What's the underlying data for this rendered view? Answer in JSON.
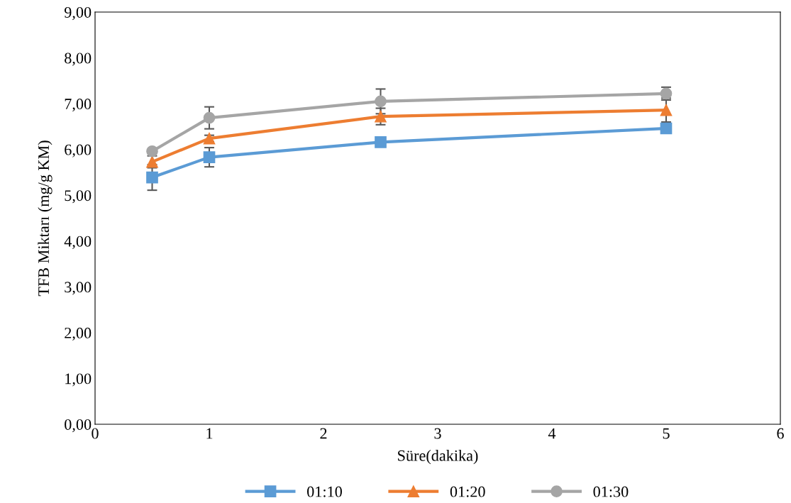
{
  "chart_data": {
    "type": "line",
    "xlabel": "Süre(dakika)",
    "ylabel": "TFB Miktarı (mg/g KM)",
    "x": [
      0.5,
      1,
      2.5,
      5
    ],
    "series": [
      {
        "name": "01:10",
        "color": "#5b9bd5",
        "marker": "square",
        "values": [
          5.39,
          5.83,
          6.16,
          6.46
        ],
        "errors": [
          0.28,
          0.21,
          null,
          null
        ]
      },
      {
        "name": "01:20",
        "color": "#ed7d31",
        "marker": "triangle",
        "values": [
          5.73,
          6.24,
          6.72,
          6.86
        ],
        "errors": [
          0.13,
          0.07,
          0.18,
          0.26
        ]
      },
      {
        "name": "01:30",
        "color": "#a5a5a5",
        "marker": "circle",
        "values": [
          5.96,
          6.69,
          7.05,
          7.22
        ],
        "errors": [
          null,
          0.24,
          0.27,
          0.14
        ]
      }
    ],
    "xlim": [
      0,
      6
    ],
    "xticks": [
      0,
      1,
      2,
      3,
      4,
      5,
      6
    ],
    "ylim": [
      0,
      9
    ],
    "yticks": [
      {
        "value": 0,
        "label": "0,00"
      },
      {
        "value": 1,
        "label": "1,00"
      },
      {
        "value": 2,
        "label": "2,00"
      },
      {
        "value": 3,
        "label": "3,00"
      },
      {
        "value": 4,
        "label": "4,00"
      },
      {
        "value": 5,
        "label": "5,00"
      },
      {
        "value": 6,
        "label": "6,00"
      },
      {
        "value": 7,
        "label": "7,00"
      },
      {
        "value": 8,
        "label": "8,00"
      },
      {
        "value": 9,
        "label": "9,00"
      }
    ],
    "grid": false,
    "legend": "bottom",
    "line_style": "solid"
  }
}
